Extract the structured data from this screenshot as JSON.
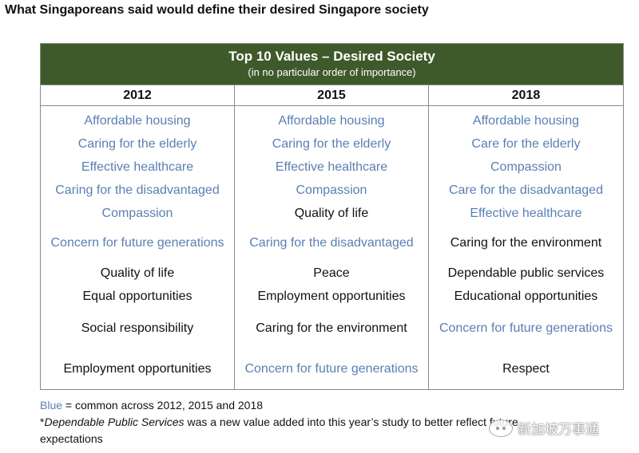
{
  "page_title": "What Singaporeans said would define their desired Singapore society",
  "table": {
    "title": "Top 10 Values – Desired Society",
    "subtitle": "(in no particular order of importance)",
    "columns": [
      {
        "year": "2012",
        "values": [
          {
            "text": "Affordable housing",
            "common": true
          },
          {
            "text": "Caring for the elderly",
            "common": true
          },
          {
            "text": "Effective healthcare",
            "common": true
          },
          {
            "text": "Caring for the disadvantaged",
            "common": true
          },
          {
            "text": "Compassion",
            "common": true
          },
          {
            "text": "Concern for future generations",
            "common": true
          },
          {
            "text": "Quality of life",
            "common": false
          },
          {
            "text": "Equal opportunities",
            "common": false
          },
          {
            "text": "Social responsibility",
            "common": false
          },
          {
            "text": "Employment opportunities",
            "common": false
          }
        ]
      },
      {
        "year": "2015",
        "values": [
          {
            "text": "Affordable housing",
            "common": true
          },
          {
            "text": "Caring for the elderly",
            "common": true
          },
          {
            "text": "Effective healthcare",
            "common": true
          },
          {
            "text": "Compassion",
            "common": true
          },
          {
            "text": "Quality of life",
            "common": false
          },
          {
            "text": "Caring for the disadvantaged",
            "common": true
          },
          {
            "text": "Peace",
            "common": false
          },
          {
            "text": "Employment opportunities",
            "common": false
          },
          {
            "text": "Caring for the environment",
            "common": false
          },
          {
            "text": "Concern for future generations",
            "common": true
          }
        ]
      },
      {
        "year": "2018",
        "values": [
          {
            "text": "Affordable housing",
            "common": true
          },
          {
            "text": "Care for the elderly",
            "common": true
          },
          {
            "text": "Compassion",
            "common": true
          },
          {
            "text": "Care for the disadvantaged",
            "common": true
          },
          {
            "text": "Effective healthcare",
            "common": true
          },
          {
            "text": "Caring for the environment",
            "common": false
          },
          {
            "text": "Dependable public services",
            "common": false
          },
          {
            "text": "Educational opportunities",
            "common": false
          },
          {
            "text": "Concern for future generations",
            "common": true
          },
          {
            "text": "Respect",
            "common": false
          }
        ]
      }
    ]
  },
  "footnote": {
    "blue_word": "Blue",
    "line1_rest": " = common across 2012, 2015 and 2018",
    "star": "*",
    "italic_term": "Dependable Public Services",
    "line2_rest": " was a new value added into this year’s study to better reflect future",
    "line3": "expectations"
  },
  "watermark": {
    "text": "新加坡万事通",
    "icon": "wechat-icon"
  },
  "colors": {
    "header_green": "#3f5a2a",
    "common_blue": "#5a7fb3",
    "text_black": "#111111"
  }
}
